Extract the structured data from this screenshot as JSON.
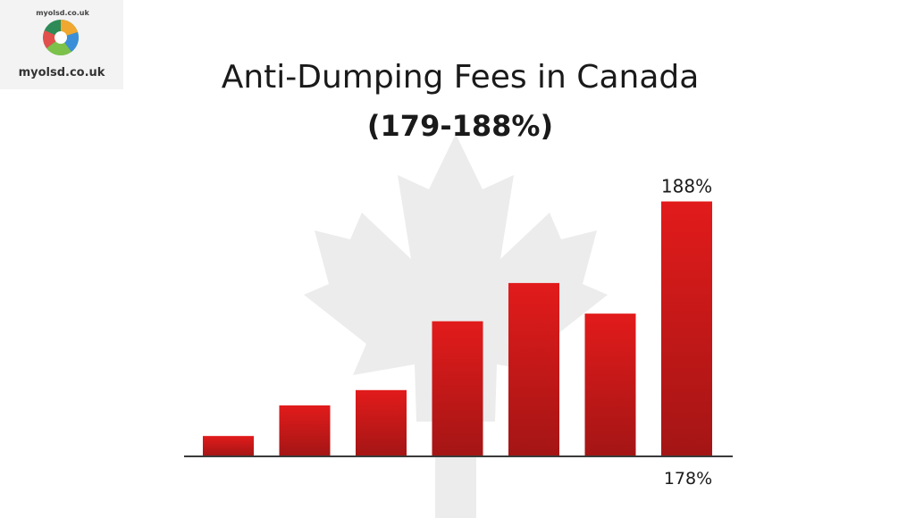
{
  "logo": {
    "arc_text": "myolsd.co.uk",
    "site_text": "myolsd.co.uk"
  },
  "chart_data": {
    "type": "bar",
    "title": "Anti-Dumping Fees in Canada",
    "subtitle": "(179-188%)",
    "categories": [
      "",
      "",
      "",
      "",
      "",
      "",
      ""
    ],
    "values": [
      178.8,
      180.0,
      180.6,
      183.3,
      184.8,
      183.6,
      188
    ],
    "ylim": [
      178,
      189
    ],
    "data_labels": [
      "",
      "",
      "",
      "",
      "",
      "",
      "188%"
    ],
    "axis_label_right": "178%",
    "bar_color": "#e21b1b",
    "bar_color_dark": "#a41515",
    "background_motif": "maple-leaf-icon"
  }
}
